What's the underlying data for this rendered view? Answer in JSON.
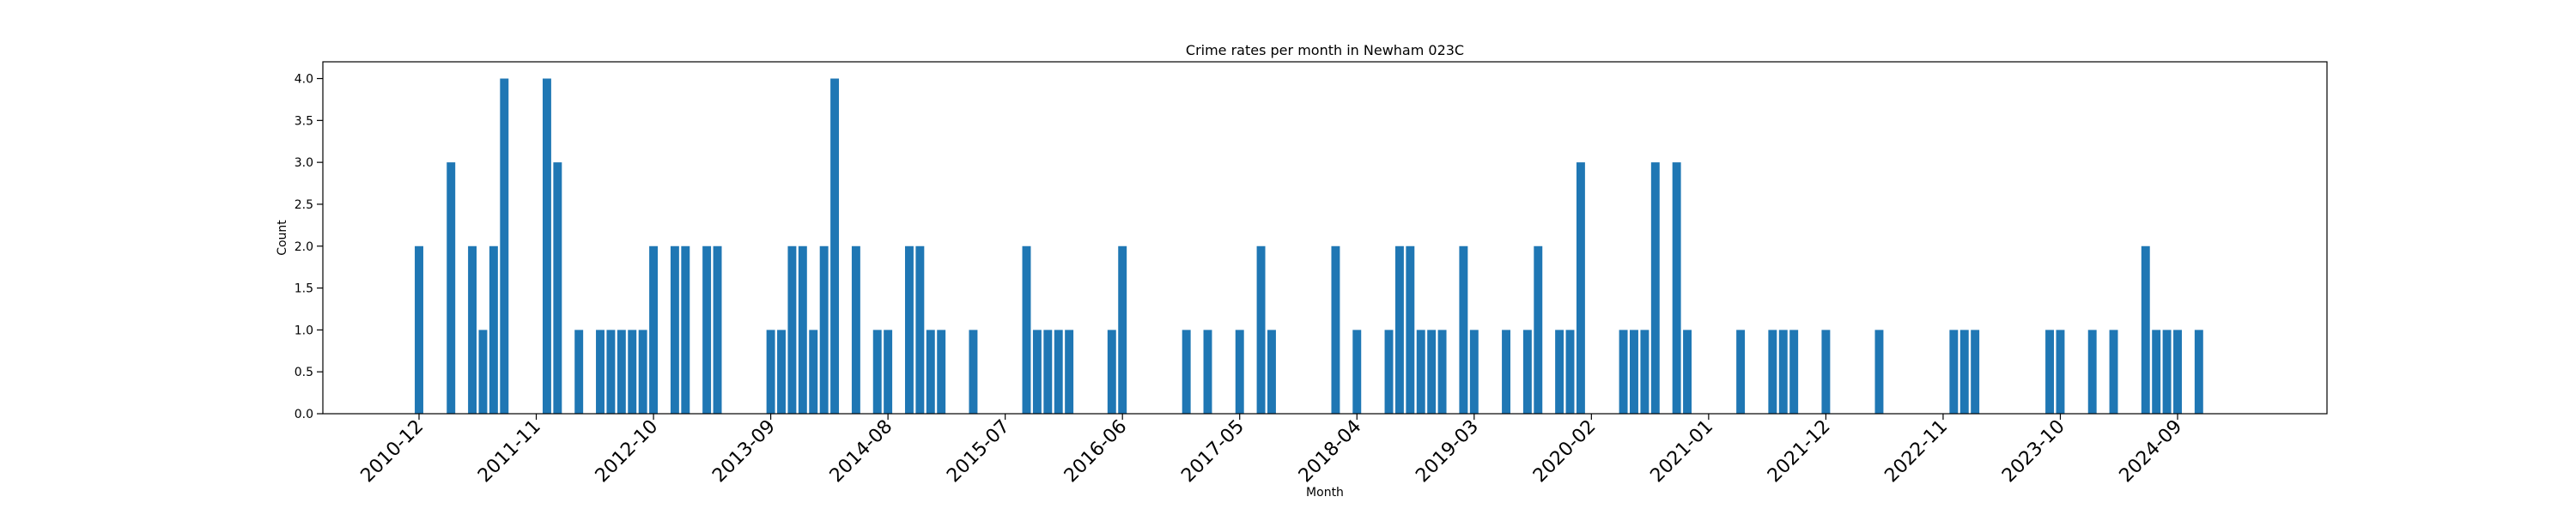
{
  "chart_data": {
    "type": "bar",
    "title": "Crime rates per month in Newham 023C",
    "xlabel": "Month",
    "ylabel": "Count",
    "ylim": [
      0,
      4.2
    ],
    "yticks": [
      "0.0",
      "0.5",
      "1.0",
      "1.5",
      "2.0",
      "2.5",
      "3.0",
      "3.5",
      "4.0"
    ],
    "xticks": [
      "2010-12",
      "2011-11",
      "2012-10",
      "2013-09",
      "2014-08",
      "2015-07",
      "2016-06",
      "2017-05",
      "2018-04",
      "2019-03",
      "2020-02",
      "2021-01",
      "2021-12",
      "2022-11",
      "2023-10",
      "2024-09"
    ],
    "bar_color": "#1f77b4",
    "grid": false,
    "series": [
      {
        "points": [
          {
            "x": "2010-12",
            "y": 2
          },
          {
            "x": "2011-03",
            "y": 3
          },
          {
            "x": "2011-05",
            "y": 2
          },
          {
            "x": "2011-06",
            "y": 1
          },
          {
            "x": "2011-07",
            "y": 2
          },
          {
            "x": "2011-08",
            "y": 4
          },
          {
            "x": "2011-12",
            "y": 4
          },
          {
            "x": "2012-01",
            "y": 3
          },
          {
            "x": "2012-03",
            "y": 1
          },
          {
            "x": "2012-05",
            "y": 1
          },
          {
            "x": "2012-06",
            "y": 1
          },
          {
            "x": "2012-07",
            "y": 1
          },
          {
            "x": "2012-08",
            "y": 1
          },
          {
            "x": "2012-09",
            "y": 1
          },
          {
            "x": "2012-10",
            "y": 2
          },
          {
            "x": "2012-12",
            "y": 2
          },
          {
            "x": "2013-01",
            "y": 2
          },
          {
            "x": "2013-03",
            "y": 2
          },
          {
            "x": "2013-04",
            "y": 2
          },
          {
            "x": "2013-09",
            "y": 1
          },
          {
            "x": "2013-10",
            "y": 1
          },
          {
            "x": "2013-11",
            "y": 2
          },
          {
            "x": "2013-12",
            "y": 2
          },
          {
            "x": "2014-01",
            "y": 1
          },
          {
            "x": "2014-02",
            "y": 2
          },
          {
            "x": "2014-03",
            "y": 4
          },
          {
            "x": "2014-05",
            "y": 2
          },
          {
            "x": "2014-07",
            "y": 1
          },
          {
            "x": "2014-08",
            "y": 1
          },
          {
            "x": "2014-10",
            "y": 2
          },
          {
            "x": "2014-11",
            "y": 2
          },
          {
            "x": "2014-12",
            "y": 1
          },
          {
            "x": "2015-01",
            "y": 1
          },
          {
            "x": "2015-04",
            "y": 1
          },
          {
            "x": "2015-09",
            "y": 2
          },
          {
            "x": "2015-10",
            "y": 1
          },
          {
            "x": "2015-11",
            "y": 1
          },
          {
            "x": "2015-12",
            "y": 1
          },
          {
            "x": "2016-01",
            "y": 1
          },
          {
            "x": "2016-05",
            "y": 1
          },
          {
            "x": "2016-06",
            "y": 2
          },
          {
            "x": "2016-12",
            "y": 1
          },
          {
            "x": "2017-02",
            "y": 1
          },
          {
            "x": "2017-05",
            "y": 1
          },
          {
            "x": "2017-07",
            "y": 2
          },
          {
            "x": "2017-08",
            "y": 1
          },
          {
            "x": "2018-02",
            "y": 2
          },
          {
            "x": "2018-04",
            "y": 1
          },
          {
            "x": "2018-07",
            "y": 1
          },
          {
            "x": "2018-08",
            "y": 2
          },
          {
            "x": "2018-09",
            "y": 2
          },
          {
            "x": "2018-10",
            "y": 1
          },
          {
            "x": "2018-11",
            "y": 1
          },
          {
            "x": "2018-12",
            "y": 1
          },
          {
            "x": "2019-02",
            "y": 2
          },
          {
            "x": "2019-03",
            "y": 1
          },
          {
            "x": "2019-06",
            "y": 1
          },
          {
            "x": "2019-08",
            "y": 1
          },
          {
            "x": "2019-09",
            "y": 2
          },
          {
            "x": "2019-11",
            "y": 1
          },
          {
            "x": "2019-12",
            "y": 1
          },
          {
            "x": "2020-01",
            "y": 3
          },
          {
            "x": "2020-05",
            "y": 1
          },
          {
            "x": "2020-06",
            "y": 1
          },
          {
            "x": "2020-07",
            "y": 1
          },
          {
            "x": "2020-08",
            "y": 3
          },
          {
            "x": "2020-10",
            "y": 3
          },
          {
            "x": "2020-11",
            "y": 1
          },
          {
            "x": "2021-04",
            "y": 1
          },
          {
            "x": "2021-07",
            "y": 1
          },
          {
            "x": "2021-08",
            "y": 1
          },
          {
            "x": "2021-09",
            "y": 1
          },
          {
            "x": "2021-12",
            "y": 1
          },
          {
            "x": "2022-05",
            "y": 1
          },
          {
            "x": "2022-12",
            "y": 1
          },
          {
            "x": "2023-01",
            "y": 1
          },
          {
            "x": "2023-02",
            "y": 1
          },
          {
            "x": "2023-09",
            "y": 1
          },
          {
            "x": "2023-10",
            "y": 1
          },
          {
            "x": "2024-01",
            "y": 1
          },
          {
            "x": "2024-03",
            "y": 1
          },
          {
            "x": "2024-06",
            "y": 2
          },
          {
            "x": "2024-07",
            "y": 1
          },
          {
            "x": "2024-08",
            "y": 1
          },
          {
            "x": "2024-09",
            "y": 1
          },
          {
            "x": "2024-11",
            "y": 1
          }
        ]
      }
    ]
  }
}
